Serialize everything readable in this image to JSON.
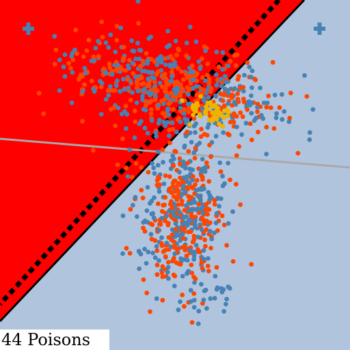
{
  "game": {
    "status_text": "44 Poisons",
    "colors": {
      "background": "#b0c4de",
      "red_region": "#ff0000",
      "boundary": "#000000",
      "gray_line": "#a9a9a9",
      "blue_point": "#4682b4",
      "orange_point": "#ff4500",
      "gold_point": "#f0b400",
      "status_bg": "#ffffff"
    },
    "markers": [
      {
        "icon": "plus-icon"
      },
      {
        "icon": "plus-icon"
      }
    ]
  }
}
